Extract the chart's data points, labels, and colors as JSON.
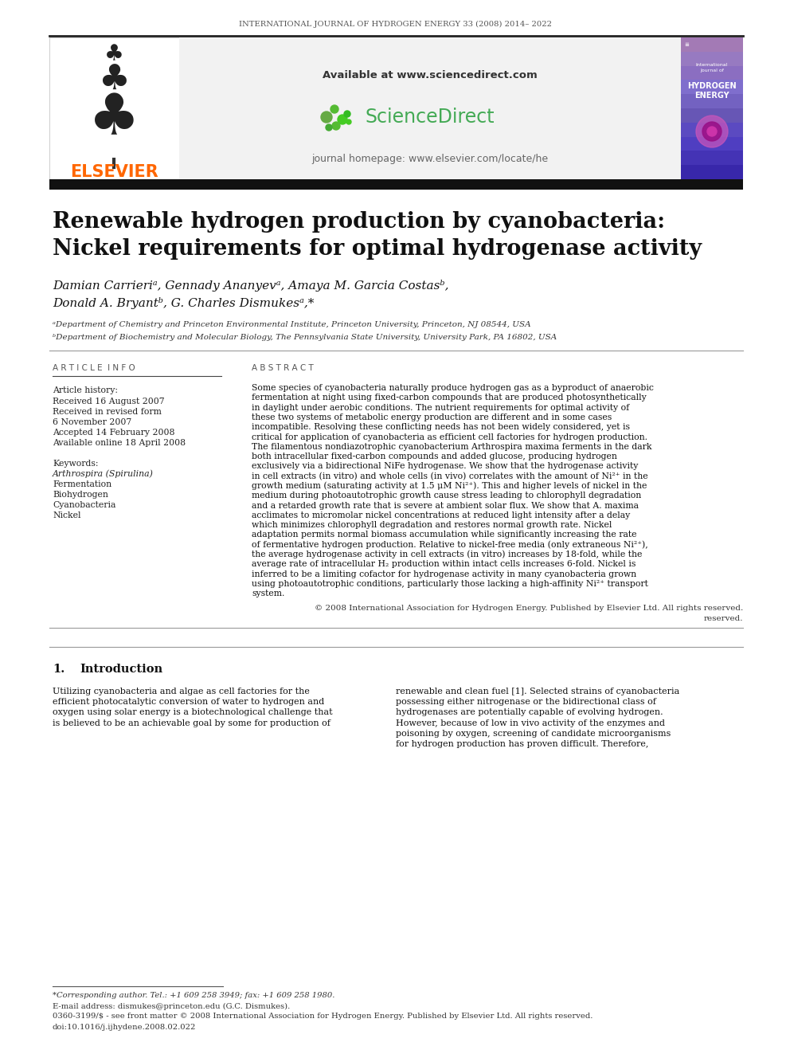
{
  "journal_header": "INTERNATIONAL JOURNAL OF HYDROGEN ENERGY 33 (2008) 2014– 2022",
  "title_line1": "Renewable hydrogen production by cyanobacteria:",
  "title_line2": "Nickel requirements for optimal hydrogenase activity",
  "authors_line1": "Damian Carrieriᵃ, Gennady Ananyevᵃ, Amaya M. Garcia Costasᵇ,",
  "authors_line2": "Donald A. Bryantᵇ, G. Charles Dismukesᵃ,*",
  "affil_a": "ᵃDepartment of Chemistry and Princeton Environmental Institute, Princeton University, Princeton, NJ 08544, USA",
  "affil_b": "ᵇDepartment of Biochemistry and Molecular Biology, The Pennsylvania State University, University Park, PA 16802, USA",
  "article_info_header": "A R T I C L E  I N F O",
  "abstract_header": "A B S T R A C T",
  "article_history_label": "Article history:",
  "received1": "Received 16 August 2007",
  "revised": "Received in revised form",
  "revised2": "6 November 2007",
  "accepted": "Accepted 14 February 2008",
  "available": "Available online 18 April 2008",
  "keywords_label": "Keywords:",
  "keywords": [
    "Arthrospira (Spirulina)",
    "Fermentation",
    "Biohydrogen",
    "Cyanobacteria",
    "Nickel"
  ],
  "copyright_text": "© 2008 International Association for Hydrogen Energy. Published by Elsevier Ltd. All rights reserved.",
  "section1_header": "1.    Introduction",
  "footnote_star": "*Corresponding author. Tel.: +1 609 258 3949; fax: +1 609 258 1980.",
  "footnote_email": "E-mail address: dismukes@princeton.edu (G.C. Dismukes).",
  "footnote_issn": "0360-3199/$ - see front matter © 2008 International Association for Hydrogen Energy. Published by Elsevier Ltd. All rights reserved.",
  "footnote_doi": "doi:10.1016/j.ijhydene.2008.02.022",
  "sd_available": "Available at www.sciencedirect.com",
  "sd_homepage": "journal homepage: www.elsevier.com/locate/he",
  "bg_color": "#ffffff",
  "elsevier_orange": "#FF6600",
  "abstract_lines": [
    "Some species of cyanobacteria naturally produce hydrogen gas as a byproduct of anaerobic",
    "fermentation at night using fixed-carbon compounds that are produced photosynthetically",
    "in daylight under aerobic conditions. The nutrient requirements for optimal activity of",
    "these two systems of metabolic energy production are different and in some cases",
    "incompatible. Resolving these conflicting needs has not been widely considered, yet is",
    "critical for application of cyanobacteria as efficient cell factories for hydrogen production.",
    "The filamentous nondiazotrophic cyanobacterium Arthrospira maxima ferments in the dark",
    "both intracellular fixed-carbon compounds and added glucose, producing hydrogen",
    "exclusively via a bidirectional NiFe hydrogenase. We show that the hydrogenase activity",
    "in cell extracts (in vitro) and whole cells (in vivo) correlates with the amount of Ni²⁺ in the",
    "growth medium (saturating activity at 1.5 μM Ni²⁺). This and higher levels of nickel in the",
    "medium during photoautotrophic growth cause stress leading to chlorophyll degradation",
    "and a retarded growth rate that is severe at ambient solar flux. We show that A. maxima",
    "acclimates to micromolar nickel concentrations at reduced light intensity after a delay",
    "which minimizes chlorophyll degradation and restores normal growth rate. Nickel",
    "adaptation permits normal biomass accumulation while significantly increasing the rate",
    "of fermentative hydrogen production. Relative to nickel-free media (only extraneous Ni²⁺),",
    "the average hydrogenase activity in cell extracts (in vitro) increases by 18-fold, while the",
    "average rate of intracellular H₂ production within intact cells increases 6-fold. Nickel is",
    "inferred to be a limiting cofactor for hydrogenase activity in many cyanobacteria grown",
    "using photoautotrophic conditions, particularly those lacking a high-affinity Ni²⁺ transport",
    "system."
  ],
  "intro_left_lines": [
    "Utilizing cyanobacteria and algae as cell factories for the",
    "efficient photocatalytic conversion of water to hydrogen and",
    "oxygen using solar energy is a biotechnological challenge that",
    "is believed to be an achievable goal by some for production of"
  ],
  "intro_right_lines": [
    "renewable and clean fuel [1]. Selected strains of cyanobacteria",
    "possessing either nitrogenase or the bidirectional class of",
    "hydrogenases are potentially capable of evolving hydrogen.",
    "However, because of low in vivo activity of the enzymes and",
    "poisoning by oxygen, screening of candidate microorganisms",
    "for hydrogen production has proven difficult. Therefore,"
  ]
}
